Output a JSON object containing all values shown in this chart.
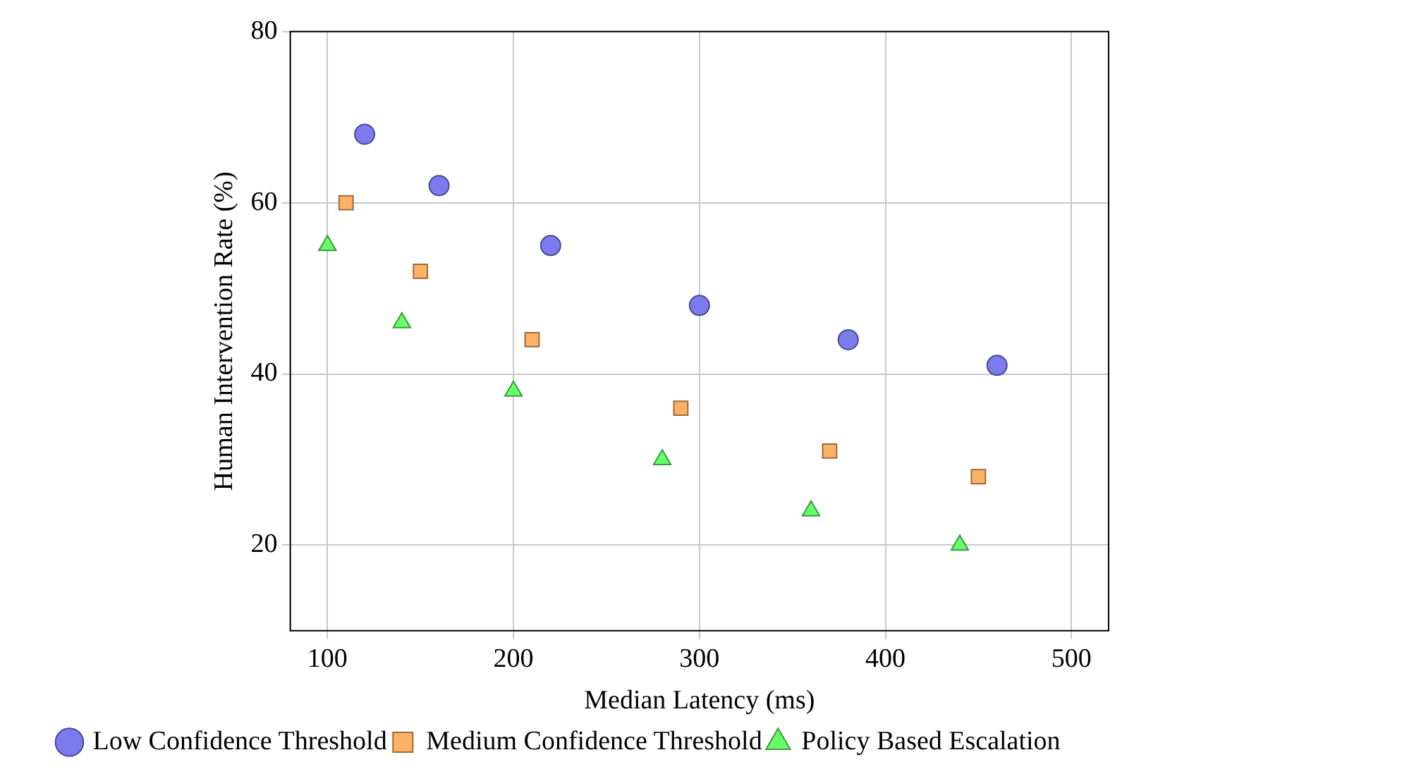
{
  "chart_data": {
    "type": "scatter",
    "xlabel": "Median Latency (ms)",
    "ylabel": "Human Intervention Rate (%)",
    "xlim": [
      80,
      520
    ],
    "xticks": [
      100,
      200,
      300,
      400,
      500
    ],
    "ylim": [
      10,
      80
    ],
    "yticks": [
      20,
      40,
      60,
      80
    ],
    "grid": true,
    "legend": "bottom",
    "series": [
      {
        "name": "Low Confidence Threshold",
        "color": "#7b7bef",
        "marker": "circle",
        "x": [
          120,
          160,
          220,
          300,
          380,
          460
        ],
        "values": [
          68,
          62,
          55,
          48,
          44,
          41
        ]
      },
      {
        "name": "Medium Confidence Threshold",
        "color": "#ffb266",
        "marker": "square",
        "x": [
          110,
          150,
          210,
          290,
          370,
          450
        ],
        "values": [
          60,
          52,
          44,
          36,
          31,
          28
        ]
      },
      {
        "name": "Policy Based Escalation",
        "color": "#66ff66",
        "marker": "triangle",
        "x": [
          100,
          140,
          200,
          280,
          360,
          440
        ],
        "values": [
          55,
          46,
          38,
          30,
          24,
          20
        ]
      }
    ]
  }
}
